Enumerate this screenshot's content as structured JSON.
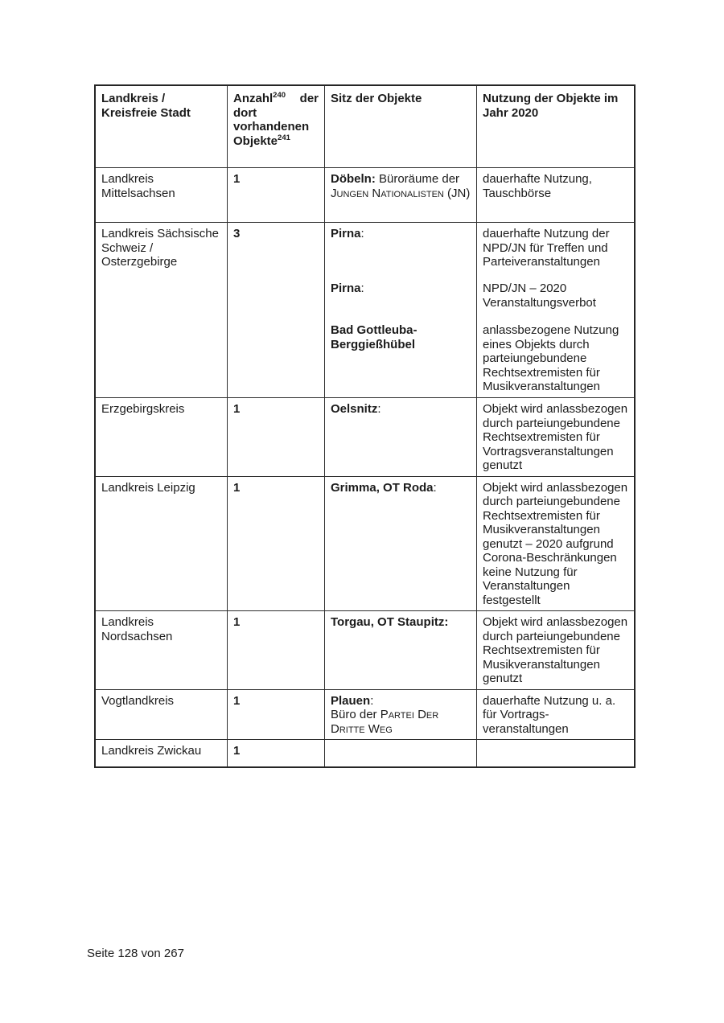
{
  "page": {
    "footer": "Seite 128 von 267"
  },
  "table": {
    "headers": {
      "col1": "Landkreis / Kreisfreie Stadt",
      "col2_word": "Anzahl",
      "col2_sup1": "240",
      "col2_rest": " der dort vorhandenen Objekte",
      "col2_sup2": "241",
      "col3": "Sitz der Objekte",
      "col4": "Nutzung der Objekte im Jahr 2020"
    },
    "rows": [
      {
        "district": "Landkreis Mittelsachsen",
        "count": "1",
        "sitz_bold": "Döbeln:",
        "sitz_text": " Büroräume der ",
        "sitz_sc": "Jungen Nationalisten",
        "sitz_after": " (JN)",
        "nutzung": "dauerhafte Nutzung, Tauschbörse"
      },
      {
        "district": "Landkreis Sächsische Schweiz / Osterzgebirge",
        "count": "3",
        "blocks": [
          {
            "city": "Pirna",
            "colon": ":",
            "use": "dauerhafte Nutzung der NPD/JN für Treffen und Parteiveranstaltungen"
          },
          {
            "city": "Pirna",
            "colon": ":",
            "use": "NPD/JN – 2020 Veranstaltungsverbot"
          },
          {
            "city": "Bad Gottleuba-Berggießhübel",
            "colon": "",
            "use": "anlassbezogene Nutzung eines Objekts durch parteiungebundene Rechtsextremisten für Musikveranstaltungen"
          }
        ]
      },
      {
        "district": "Erzgebirgskreis",
        "count": "1",
        "city": "Oelsnitz",
        "colon": ":",
        "nutzung": "Objekt wird anlassbezogen durch parteiungebundene Rechtsextremisten für Vortragsveranstaltungen genutzt"
      },
      {
        "district": "Landkreis Leipzig",
        "count": "1",
        "city": "Grimma, OT Roda",
        "colon": ":",
        "nutzung": "Objekt wird anlassbezogen durch parteiungebundene Rechtsextremisten für Musikveranstaltungen genutzt – 2020 aufgrund Corona-Beschränkungen keine Nutzung für Veranstaltungen festgestellt"
      },
      {
        "district": "Landkreis Nordsachsen",
        "count": "1",
        "city": "Torgau, OT Staupitz:",
        "colon": "",
        "nutzung": "Objekt wird anlassbezogen durch parteiungebundene Rechtsextremisten für Musikveranstaltungen genutzt"
      },
      {
        "district": "Vogtlandkreis",
        "count": "1",
        "city": "Plauen",
        "colon": ":",
        "sitz_line2_pre": "Büro der ",
        "sitz_line2_sc": "Partei Der Dritte Weg",
        "nutzung": "dauerhafte Nutzung u. a. für Vortrags-veranstaltungen"
      },
      {
        "district": "Landkreis Zwickau",
        "count": "1",
        "city": "",
        "colon": "",
        "nutzung": ""
      }
    ]
  }
}
